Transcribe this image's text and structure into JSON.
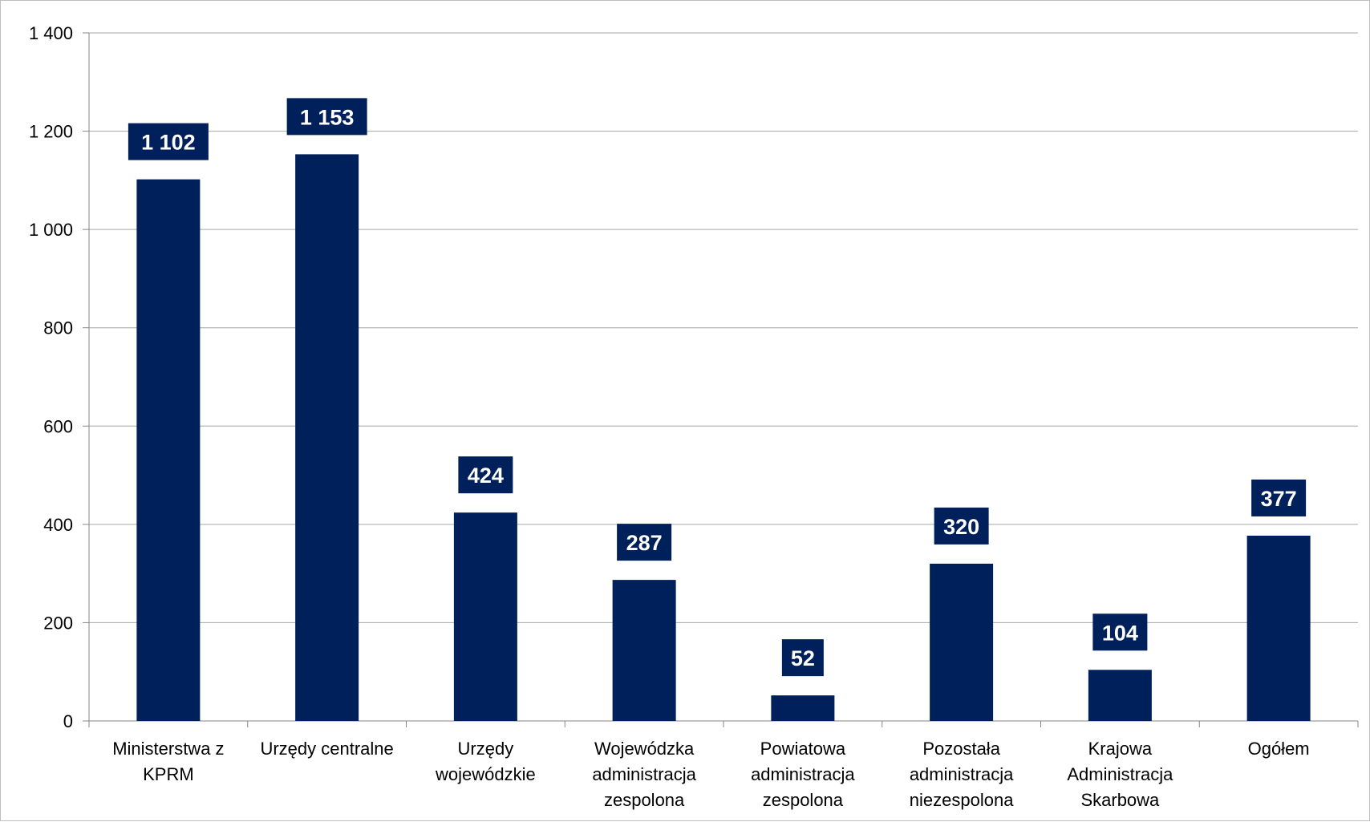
{
  "chart_data": {
    "type": "bar",
    "categories": [
      [
        "Ministerstwa z",
        "KPRM"
      ],
      [
        "Urzędy centralne"
      ],
      [
        "Urzędy",
        "wojewódzkie"
      ],
      [
        "Wojewódzka",
        "administracja",
        "zespolona"
      ],
      [
        "Powiatowa",
        "administracja",
        "zespolona"
      ],
      [
        "Pozostała",
        "administracja",
        "niezespolona"
      ],
      [
        "Krajowa",
        "Administracja",
        "Skarbowa"
      ],
      [
        "Ogółem"
      ]
    ],
    "values": [
      1102,
      1153,
      424,
      287,
      52,
      320,
      104,
      377
    ],
    "data_labels": [
      "1 102",
      "1 153",
      "424",
      "287",
      "52",
      "320",
      "104",
      "377"
    ],
    "ylim": [
      0,
      1400
    ],
    "y_ticks": [
      0,
      200,
      400,
      600,
      800,
      1000,
      1200,
      1400
    ],
    "y_tick_labels": [
      "0",
      "200",
      "400",
      "600",
      "800",
      "1 000",
      "1 200",
      "1 400"
    ],
    "grid": true,
    "legend": "none",
    "colors": {
      "bar": "#00205b",
      "label_bg": "#00205b",
      "grid": "#a6a6a6",
      "axis": "#868686"
    }
  }
}
